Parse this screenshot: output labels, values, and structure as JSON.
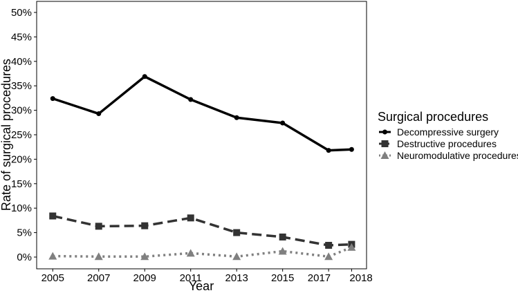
{
  "chart_data": {
    "type": "line",
    "title": "",
    "xlabel": "Year",
    "ylabel": "Rate of surgical procedures",
    "x": [
      2005,
      2007,
      2009,
      2011,
      2013,
      2015,
      2017,
      2018
    ],
    "x_tick_labels": [
      "2005",
      "2007",
      "2009",
      "2011",
      "2013",
      "2015",
      "2017",
      "2018"
    ],
    "ylim": [
      -2.5,
      52
    ],
    "y_ticks": [
      0,
      5,
      10,
      15,
      20,
      25,
      30,
      35,
      40,
      45,
      50
    ],
    "y_tick_labels": [
      "0%",
      "5%",
      "10%",
      "15%",
      "20%",
      "25%",
      "30%",
      "35%",
      "40%",
      "45%",
      "50%"
    ],
    "grid": false,
    "legend": {
      "title": "Surgical procedures",
      "position": "right"
    },
    "series": [
      {
        "name": "Decompressive surgery",
        "values": [
          32.4,
          29.3,
          36.9,
          32.2,
          28.5,
          27.4,
          21.8,
          22.0
        ],
        "color": "#000000",
        "line_style": "solid",
        "marker": "circle"
      },
      {
        "name": "Destructive procedures",
        "values": [
          8.4,
          6.3,
          6.4,
          8.0,
          5.0,
          4.1,
          2.4,
          2.6
        ],
        "color": "#333333",
        "line_style": "dashed",
        "marker": "square"
      },
      {
        "name": "Neuromodulative procedures",
        "values": [
          0.2,
          0.1,
          0.1,
          0.8,
          0.1,
          1.2,
          0.1,
          2.0
        ],
        "color": "#808080",
        "line_style": "dotted",
        "marker": "triangle"
      }
    ]
  }
}
